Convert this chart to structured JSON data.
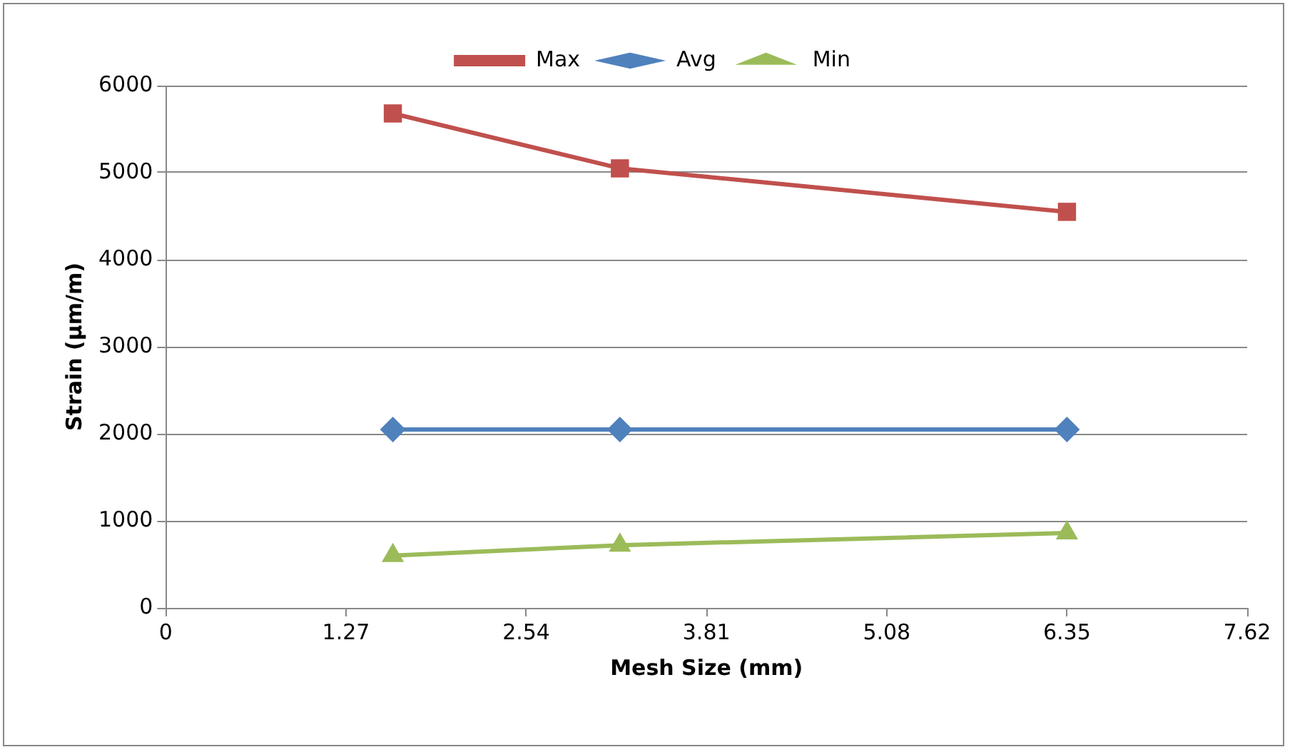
{
  "chart_data": {
    "type": "line",
    "xlabel": "Mesh Size (mm)",
    "ylabel": "Strain (µm/m)",
    "x": [
      1.6,
      3.2,
      6.35
    ],
    "series": [
      {
        "name": "Max",
        "color": "#c0504d",
        "marker": "square",
        "values": [
          5680,
          5050,
          4550
        ]
      },
      {
        "name": "Avg",
        "color": "#4f81bd",
        "marker": "diamond",
        "values": [
          2050,
          2050,
          2050
        ]
      },
      {
        "name": "Min",
        "color": "#9bbb59",
        "marker": "triangle",
        "values": [
          600,
          720,
          860
        ]
      }
    ],
    "xlim": [
      0,
      7.62
    ],
    "xticks": [
      0,
      1.27,
      2.54,
      3.81,
      5.08,
      6.35,
      7.62
    ],
    "ylim": [
      0,
      6000
    ],
    "yticks": [
      0,
      1000,
      2000,
      3000,
      4000,
      5000,
      6000
    ],
    "grid": "y",
    "legend": "top"
  }
}
